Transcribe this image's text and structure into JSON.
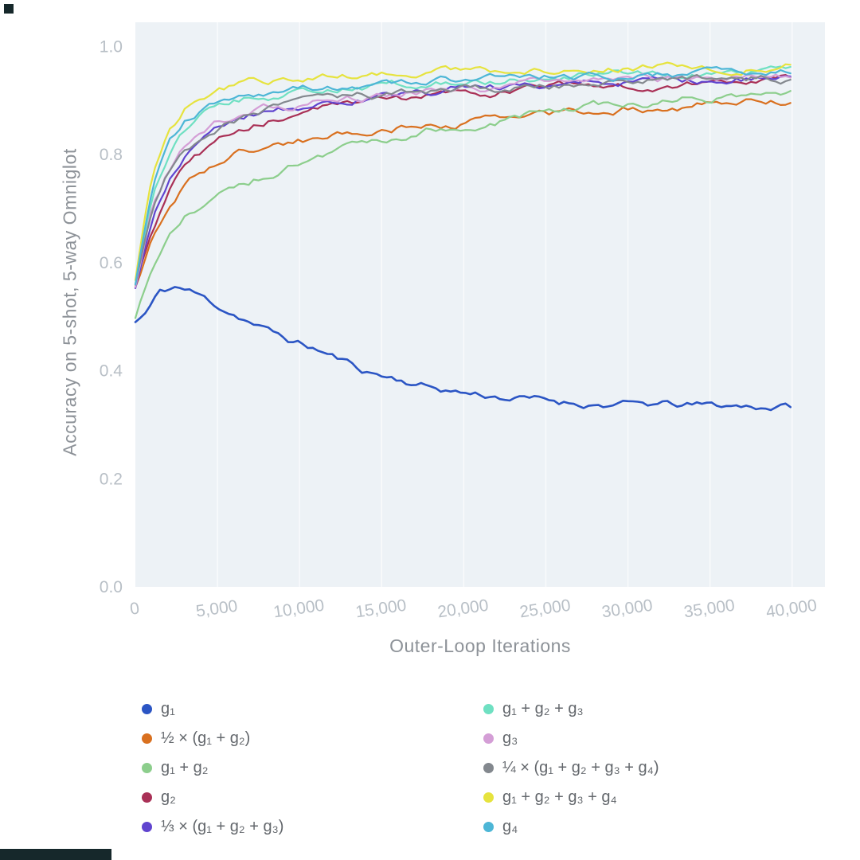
{
  "colors": {
    "tick_label": "#b8bfc6",
    "axis_label": "#8d9298",
    "legend_text": "#63676c",
    "grid_line": "#ffffff",
    "plot_background": "#edf2f6"
  },
  "legend": {
    "columns": [
      [
        0,
        1,
        2,
        3,
        4
      ],
      [
        5,
        6,
        7,
        8,
        9
      ]
    ]
  },
  "chart_data": {
    "type": "line",
    "title": "",
    "xlabel": "Outer-Loop Iterations",
    "ylabel": "Accuracy on 5-shot, 5-way Omniglot",
    "xlim": [
      0,
      42000
    ],
    "ylim": [
      0,
      1.045
    ],
    "xticks": [
      0,
      5000,
      10000,
      15000,
      20000,
      25000,
      30000,
      35000,
      40000
    ],
    "xtick_labels": [
      "0",
      "5,000",
      "10,000",
      "15,000",
      "20,000",
      "25,000",
      "30,000",
      "35,000",
      "40,000"
    ],
    "yticks": [
      0.0,
      0.2,
      0.4,
      0.6,
      0.8,
      1.0
    ],
    "ytick_labels": [
      "0.0",
      "0.2",
      "0.4",
      "0.6",
      "0.8",
      "1.0"
    ],
    "grid": "vertical-faint-white",
    "legend_position": "below-two-columns",
    "plot_background": "#edf2f6",
    "series": [
      {
        "name": "g₁",
        "color": "#2b55c4",
        "x": [
          0,
          600,
          1500,
          2500,
          3500,
          5000,
          6500,
          8000,
          9500,
          11000,
          12500,
          14000,
          16000,
          18000,
          20000,
          23000,
          26000,
          30000,
          34000,
          40000
        ],
        "y": [
          0.49,
          0.505,
          0.545,
          0.555,
          0.545,
          0.52,
          0.5,
          0.475,
          0.455,
          0.44,
          0.42,
          0.4,
          0.385,
          0.37,
          0.36,
          0.35,
          0.342,
          0.337,
          0.335,
          0.334
        ]
      },
      {
        "name": "½ × (g₁ + g₂)",
        "color": "#d9701f",
        "x": [
          0,
          1000,
          2000,
          3000,
          4000,
          5000,
          6000,
          8000,
          10000,
          12000,
          14000,
          16000,
          18000,
          20000,
          23000,
          26000,
          30000,
          34000,
          40000
        ],
        "y": [
          0.555,
          0.64,
          0.7,
          0.745,
          0.77,
          0.785,
          0.8,
          0.815,
          0.825,
          0.835,
          0.843,
          0.85,
          0.855,
          0.86,
          0.868,
          0.875,
          0.885,
          0.892,
          0.9
        ]
      },
      {
        "name": "g₁ + g₂",
        "color": "#8cce8c",
        "x": [
          0,
          1000,
          2000,
          3000,
          4000,
          5000,
          6000,
          8000,
          10000,
          12000,
          14000,
          16000,
          18000,
          20000,
          23000,
          26000,
          30000,
          34000,
          40000
        ],
        "y": [
          0.5,
          0.585,
          0.645,
          0.68,
          0.7,
          0.72,
          0.735,
          0.762,
          0.785,
          0.8,
          0.816,
          0.83,
          0.845,
          0.856,
          0.87,
          0.882,
          0.895,
          0.905,
          0.915
        ]
      },
      {
        "name": "g₂",
        "color": "#a93056",
        "x": [
          0,
          1000,
          2000,
          3000,
          4000,
          5000,
          6000,
          8000,
          10000,
          13000,
          16000,
          20000,
          24000,
          28000,
          32000,
          36000,
          40000
        ],
        "y": [
          0.55,
          0.66,
          0.73,
          0.775,
          0.8,
          0.822,
          0.84,
          0.862,
          0.876,
          0.89,
          0.9,
          0.912,
          0.921,
          0.928,
          0.933,
          0.937,
          0.94
        ]
      },
      {
        "name": "⅓ × (g₁ + g₂ + g₃)",
        "color": "#6044cf",
        "x": [
          0,
          1000,
          2000,
          3000,
          4000,
          5000,
          6000,
          8000,
          10000,
          13000,
          16000,
          20000,
          24000,
          28000,
          32000,
          36000,
          40000
        ],
        "y": [
          0.555,
          0.68,
          0.755,
          0.8,
          0.826,
          0.845,
          0.858,
          0.878,
          0.89,
          0.902,
          0.912,
          0.921,
          0.928,
          0.934,
          0.938,
          0.941,
          0.944
        ]
      },
      {
        "name": "g₁ + g₂ + g₃",
        "color": "#6fe0c2",
        "x": [
          0,
          1000,
          2000,
          3000,
          4000,
          5000,
          6000,
          8000,
          10000,
          13000,
          16000,
          20000,
          24000,
          28000,
          32000,
          36000,
          40000
        ],
        "y": [
          0.56,
          0.72,
          0.8,
          0.845,
          0.87,
          0.885,
          0.895,
          0.907,
          0.915,
          0.924,
          0.93,
          0.937,
          0.942,
          0.947,
          0.95,
          0.952,
          0.953
        ]
      },
      {
        "name": "g₃",
        "color": "#d49ed6",
        "x": [
          0,
          1000,
          2000,
          3000,
          4000,
          5000,
          6000,
          8000,
          10000,
          13000,
          16000,
          20000,
          24000,
          28000,
          32000,
          36000,
          40000
        ],
        "y": [
          0.55,
          0.7,
          0.77,
          0.812,
          0.836,
          0.855,
          0.868,
          0.885,
          0.895,
          0.906,
          0.914,
          0.922,
          0.929,
          0.934,
          0.938,
          0.94,
          0.942
        ]
      },
      {
        "name": "¼ × (g₁ + g₂ + g₃ + g₄)",
        "color": "#83888e",
        "x": [
          0,
          1000,
          2000,
          3000,
          4000,
          5000,
          6000,
          8000,
          10000,
          13000,
          16000,
          20000,
          24000,
          28000,
          32000,
          36000,
          40000
        ],
        "y": [
          0.555,
          0.69,
          0.76,
          0.805,
          0.83,
          0.85,
          0.864,
          0.882,
          0.893,
          0.904,
          0.912,
          0.92,
          0.927,
          0.933,
          0.937,
          0.94,
          0.942
        ]
      },
      {
        "name": "g₁ + g₂ + g₃ + g₄",
        "color": "#e6e33e",
        "x": [
          0,
          1000,
          2000,
          3000,
          4000,
          5000,
          6000,
          8000,
          10000,
          13000,
          16000,
          20000,
          24000,
          28000,
          32000,
          36000,
          40000
        ],
        "y": [
          0.57,
          0.76,
          0.845,
          0.885,
          0.905,
          0.916,
          0.925,
          0.935,
          0.941,
          0.947,
          0.951,
          0.955,
          0.958,
          0.96,
          0.962,
          0.964,
          0.966
        ]
      },
      {
        "name": "g₄",
        "color": "#4db6d6",
        "x": [
          0,
          1000,
          2000,
          3000,
          4000,
          5000,
          6000,
          8000,
          10000,
          13000,
          16000,
          20000,
          24000,
          28000,
          32000,
          36000,
          40000
        ],
        "y": [
          0.56,
          0.73,
          0.815,
          0.855,
          0.876,
          0.89,
          0.9,
          0.912,
          0.92,
          0.928,
          0.933,
          0.939,
          0.943,
          0.946,
          0.949,
          0.951,
          0.952
        ]
      }
    ]
  }
}
